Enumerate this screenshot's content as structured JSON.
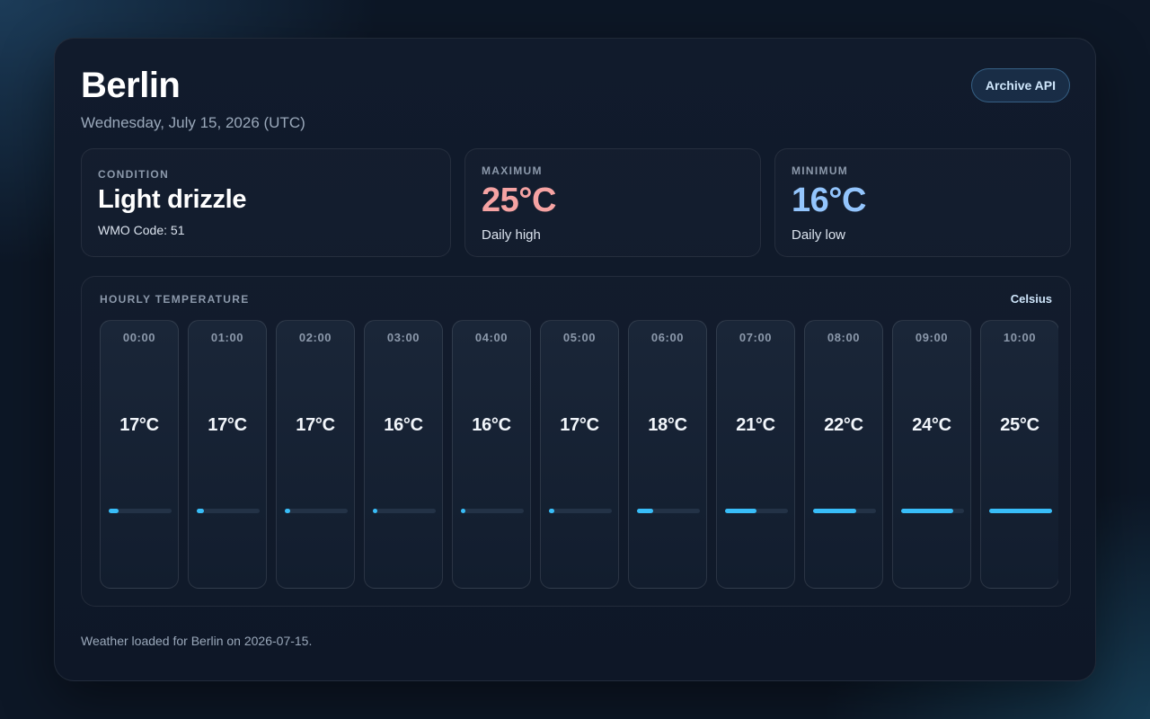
{
  "city": "Berlin",
  "date": "Wednesday, July 15, 2026 (UTC)",
  "api_button": "Archive API",
  "condition": {
    "label": "CONDITION",
    "value": "Light drizzle",
    "sub": "WMO Code: 51"
  },
  "maximum": {
    "label": "MAXIMUM",
    "value": "25°C",
    "sub": "Daily high"
  },
  "minimum": {
    "label": "MINIMUM",
    "value": "16°C",
    "sub": "Daily low"
  },
  "hourly": {
    "title": "HOURLY TEMPERATURE",
    "unit": "Celsius",
    "bar_color": "#38bdf8",
    "hours": [
      {
        "time": "00:00",
        "temp": "17°C",
        "level": 0.16
      },
      {
        "time": "01:00",
        "temp": "17°C",
        "level": 0.12
      },
      {
        "time": "02:00",
        "temp": "17°C",
        "level": 0.08
      },
      {
        "time": "03:00",
        "temp": "16°C",
        "level": 0.07
      },
      {
        "time": "04:00",
        "temp": "16°C",
        "level": 0.07
      },
      {
        "time": "05:00",
        "temp": "17°C",
        "level": 0.08
      },
      {
        "time": "06:00",
        "temp": "18°C",
        "level": 0.25
      },
      {
        "time": "07:00",
        "temp": "21°C",
        "level": 0.5
      },
      {
        "time": "08:00",
        "temp": "22°C",
        "level": 0.68
      },
      {
        "time": "09:00",
        "temp": "24°C",
        "level": 0.83
      },
      {
        "time": "10:00",
        "temp": "25°C",
        "level": 1.0
      }
    ]
  },
  "status": "Weather loaded for Berlin on 2026-07-15."
}
